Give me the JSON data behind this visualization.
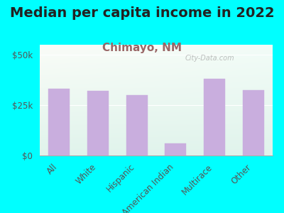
{
  "title": "Median per capita income in 2022",
  "subtitle": "Chimayo, NM",
  "categories": [
    "All",
    "White",
    "Hispanic",
    "American Indian",
    "Multirace",
    "Other"
  ],
  "values": [
    33000,
    32000,
    30000,
    6000,
    38000,
    32500
  ],
  "bar_color": "#c9aede",
  "bar_edge_color": "#c9aede",
  "background_outer": "#00ffff",
  "yticks": [
    0,
    25000,
    50000
  ],
  "ytick_labels": [
    "$0",
    "$25k",
    "$50k"
  ],
  "ylim": [
    0,
    55000
  ],
  "title_fontsize": 14,
  "subtitle_fontsize": 11,
  "title_color": "#222222",
  "subtitle_color": "#996666",
  "tick_label_color": "#555555",
  "watermark": "City-Data.com",
  "watermark_color": "#aaaaaa"
}
